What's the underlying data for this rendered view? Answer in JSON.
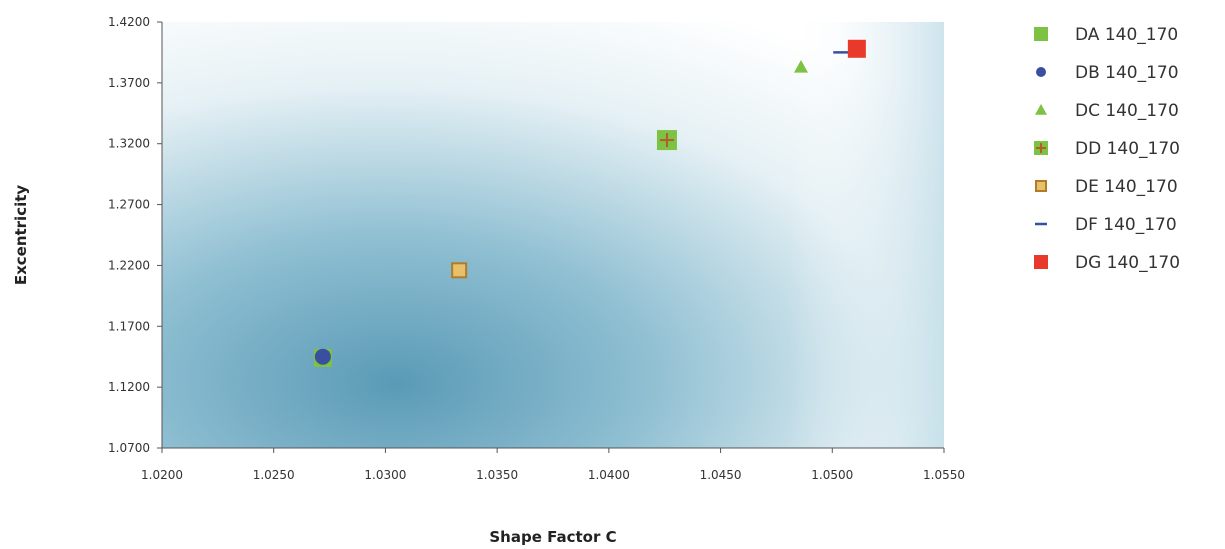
{
  "chart_data": {
    "type": "scatter",
    "title": "",
    "xlabel": "Shape Factor C",
    "ylabel": "Excentricity",
    "xlim": [
      1.02,
      1.055
    ],
    "ylim": [
      1.07,
      1.42
    ],
    "x_ticks": [
      "1.0200",
      "1.0250",
      "1.0300",
      "1.0350",
      "1.0400",
      "1.0450",
      "1.0500",
      "1.0550"
    ],
    "y_ticks": [
      "1.4200",
      "1.3700",
      "1.3200",
      "1.2700",
      "1.2200",
      "1.1700",
      "1.1200",
      "1.0700"
    ],
    "grid": false,
    "legend_position": "right",
    "series": [
      {
        "name": "DA 140_170",
        "marker": "square",
        "color": "#7dc242",
        "points": [
          {
            "x": 1.0272,
            "y": 1.144
          }
        ]
      },
      {
        "name": "DB 140_170",
        "marker": "circle",
        "color": "#3b4fa0",
        "points": [
          {
            "x": 1.0272,
            "y": 1.145
          }
        ]
      },
      {
        "name": "DC 140_170",
        "marker": "triangle",
        "color": "#7dc242",
        "points": [
          {
            "x": 1.0486,
            "y": 1.383
          }
        ]
      },
      {
        "name": "DD 140_170",
        "marker": "square-plus",
        "color": "#7dc242",
        "points": [
          {
            "x": 1.0426,
            "y": 1.323
          }
        ]
      },
      {
        "name": "DE 140_170",
        "marker": "square-outline",
        "color": "#d4a93a",
        "points": [
          {
            "x": 1.0333,
            "y": 1.216
          }
        ]
      },
      {
        "name": "DF 140_170",
        "marker": "dash",
        "color": "#3b4fa0",
        "points": [
          {
            "x": 1.0504,
            "y": 1.395
          }
        ]
      },
      {
        "name": "DG 140_170",
        "marker": "square",
        "color": "#e8392a",
        "points": [
          {
            "x": 1.0511,
            "y": 1.398
          }
        ]
      }
    ]
  }
}
